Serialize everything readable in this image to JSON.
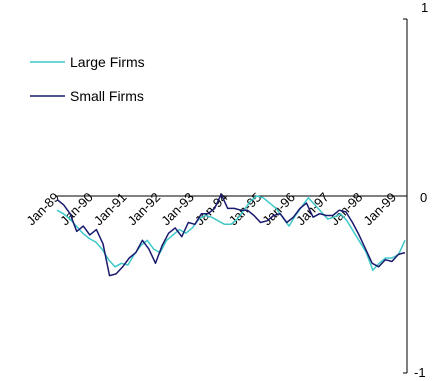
{
  "chart_data": {
    "type": "line",
    "title": "",
    "xlabel": "",
    "ylabel": "",
    "ylim": [
      -1,
      1
    ],
    "y_ticks": [
      "1",
      "0",
      "-1"
    ],
    "y_axis_position": "right",
    "x_axis_crosses_at": 0,
    "grid": false,
    "legend_position": "top-left",
    "x_tick_labels": [
      "Jan-89",
      "Jan-90",
      "Jan-91",
      "Jan-92",
      "Jan-93",
      "Jan-94",
      "Jan-95",
      "Jan-96",
      "Jan-97",
      "Jan-98",
      "Jan-99"
    ],
    "series": [
      {
        "name": "Large Firms",
        "color": "#3ec8c8",
        "values": [
          -0.08,
          -0.1,
          -0.13,
          -0.17,
          -0.21,
          -0.24,
          -0.26,
          -0.3,
          -0.36,
          -0.4,
          -0.38,
          -0.39,
          -0.33,
          -0.28,
          -0.25,
          -0.3,
          -0.32,
          -0.25,
          -0.22,
          -0.19,
          -0.21,
          -0.18,
          -0.13,
          -0.11,
          -0.12,
          -0.14,
          -0.16,
          -0.16,
          -0.13,
          -0.08,
          -0.03,
          0.0,
          -0.01,
          -0.04,
          -0.07,
          -0.12,
          -0.17,
          -0.11,
          -0.06,
          -0.01,
          -0.05,
          -0.09,
          -0.13,
          -0.12,
          -0.1,
          -0.14,
          -0.2,
          -0.26,
          -0.32,
          -0.42,
          -0.38,
          -0.35,
          -0.35,
          -0.33,
          -0.25
        ]
      },
      {
        "name": "Small Firms",
        "color": "#1a1a6e",
        "values": [
          -0.02,
          -0.05,
          -0.1,
          -0.2,
          -0.17,
          -0.22,
          -0.19,
          -0.27,
          -0.45,
          -0.44,
          -0.4,
          -0.35,
          -0.32,
          -0.25,
          -0.3,
          -0.38,
          -0.28,
          -0.21,
          -0.18,
          -0.23,
          -0.15,
          -0.16,
          -0.1,
          -0.1,
          -0.07,
          0.01,
          -0.07,
          -0.07,
          -0.08,
          -0.08,
          -0.11,
          -0.15,
          -0.14,
          -0.11,
          -0.1,
          -0.15,
          -0.12,
          -0.07,
          -0.04,
          -0.12,
          -0.1,
          -0.11,
          -0.11,
          -0.08,
          -0.09,
          -0.15,
          -0.22,
          -0.3,
          -0.38,
          -0.4,
          -0.36,
          -0.37,
          -0.33,
          -0.32
        ]
      }
    ]
  }
}
